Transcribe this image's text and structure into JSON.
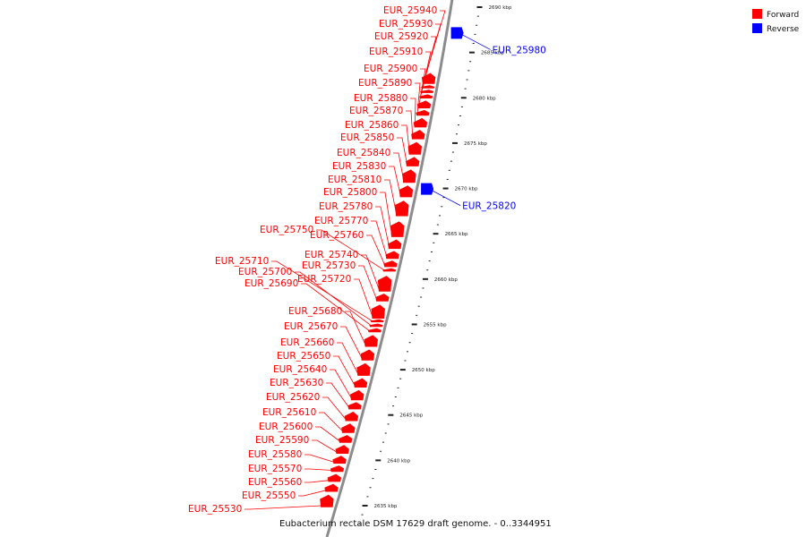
{
  "colors": {
    "forward": "#ff0000",
    "reverse": "#0000ff",
    "backbone": "#8c8c8c",
    "ticks": "#222222"
  },
  "legend": [
    {
      "label": "Forward",
      "color": "#ff0000"
    },
    {
      "label": "Reverse",
      "color": "#0000ff"
    }
  ],
  "caption": "Eubacterium rectale DSM 17629 draft genome. - 0..3344951",
  "scale": {
    "unit": "kbp",
    "major_ticks_kbp": [
      2635,
      2640,
      2645,
      2650,
      2655,
      2660,
      2665,
      2670,
      2675,
      2680,
      2685,
      2690
    ],
    "tick_labels": [
      "2635 kbp",
      "2640 kbp",
      "2645 kbp",
      "2650 kbp",
      "2655 kbp",
      "2660 kbp",
      "2665 kbp",
      "2670 kbp",
      "2675 kbp",
      "2680 kbp",
      "2685 kbp",
      "2690 kbp"
    ]
  },
  "genes": [
    {
      "name": "EUR_25530",
      "strand": "forward",
      "kbp": 2634.8
    },
    {
      "name": "EUR_25550",
      "strand": "forward",
      "kbp": 2636.5
    },
    {
      "name": "EUR_25560",
      "strand": "forward",
      "kbp": 2637.6
    },
    {
      "name": "EUR_25570",
      "strand": "forward",
      "kbp": 2638.7
    },
    {
      "name": "EUR_25580",
      "strand": "forward",
      "kbp": 2639.6
    },
    {
      "name": "EUR_25590",
      "strand": "forward",
      "kbp": 2640.7
    },
    {
      "name": "EUR_25600",
      "strand": "forward",
      "kbp": 2641.9
    },
    {
      "name": "EUR_25610",
      "strand": "forward",
      "kbp": 2643.0
    },
    {
      "name": "EUR_25620",
      "strand": "forward",
      "kbp": 2644.3
    },
    {
      "name": "EUR_25630",
      "strand": "forward",
      "kbp": 2645.6
    },
    {
      "name": "EUR_25640",
      "strand": "forward",
      "kbp": 2646.6
    },
    {
      "name": "EUR_25650",
      "strand": "forward",
      "kbp": 2648.0
    },
    {
      "name": "EUR_25660",
      "strand": "forward",
      "kbp": 2649.3
    },
    {
      "name": "EUR_25670",
      "strand": "forward",
      "kbp": 2651.0
    },
    {
      "name": "EUR_25680",
      "strand": "forward",
      "kbp": 2652.5
    },
    {
      "name": "EUR_25690",
      "strand": "forward",
      "kbp": 2654.1
    },
    {
      "name": "EUR_25700",
      "strand": "forward",
      "kbp": 2654.7
    },
    {
      "name": "EUR_25710",
      "strand": "forward",
      "kbp": 2655.2
    },
    {
      "name": "EUR_25720",
      "strand": "forward",
      "kbp": 2655.6
    },
    {
      "name": "EUR_25730",
      "strand": "forward",
      "kbp": 2657.5
    },
    {
      "name": "EUR_25740",
      "strand": "forward",
      "kbp": 2658.6
    },
    {
      "name": "EUR_25750",
      "strand": "forward",
      "kbp": 2660.8
    },
    {
      "name": "EUR_25760",
      "strand": "forward",
      "kbp": 2661.3
    },
    {
      "name": "EUR_25770",
      "strand": "forward",
      "kbp": 2662.2
    },
    {
      "name": "EUR_25780",
      "strand": "forward",
      "kbp": 2663.3
    },
    {
      "name": "EUR_25800",
      "strand": "forward",
      "kbp": 2664.6
    },
    {
      "name": "EUR_25810",
      "strand": "forward",
      "kbp": 2666.9
    },
    {
      "name": "EUR_25820",
      "strand": "reverse",
      "kbp": 2669.3
    },
    {
      "name": "EUR_25830",
      "strand": "forward",
      "kbp": 2669.0
    },
    {
      "name": "EUR_25840",
      "strand": "forward",
      "kbp": 2670.6
    },
    {
      "name": "EUR_25850",
      "strand": "forward",
      "kbp": 2672.4
    },
    {
      "name": "EUR_25860",
      "strand": "forward",
      "kbp": 2673.7
    },
    {
      "name": "EUR_25870",
      "strand": "forward",
      "kbp": 2675.4
    },
    {
      "name": "EUR_25880",
      "strand": "forward",
      "kbp": 2676.7
    },
    {
      "name": "EUR_25890",
      "strand": "forward",
      "kbp": 2678.0
    },
    {
      "name": "EUR_25900",
      "strand": "forward",
      "kbp": 2678.8
    },
    {
      "name": "EUR_25910",
      "strand": "forward",
      "kbp": 2679.9
    },
    {
      "name": "EUR_25920",
      "strand": "forward",
      "kbp": 2680.5
    },
    {
      "name": "EUR_25930",
      "strand": "forward",
      "kbp": 2681.0
    },
    {
      "name": "EUR_25940",
      "strand": "forward",
      "kbp": 2681.5
    },
    {
      "name": "EUR_25980",
      "strand": "reverse",
      "kbp": 2686.5
    }
  ]
}
